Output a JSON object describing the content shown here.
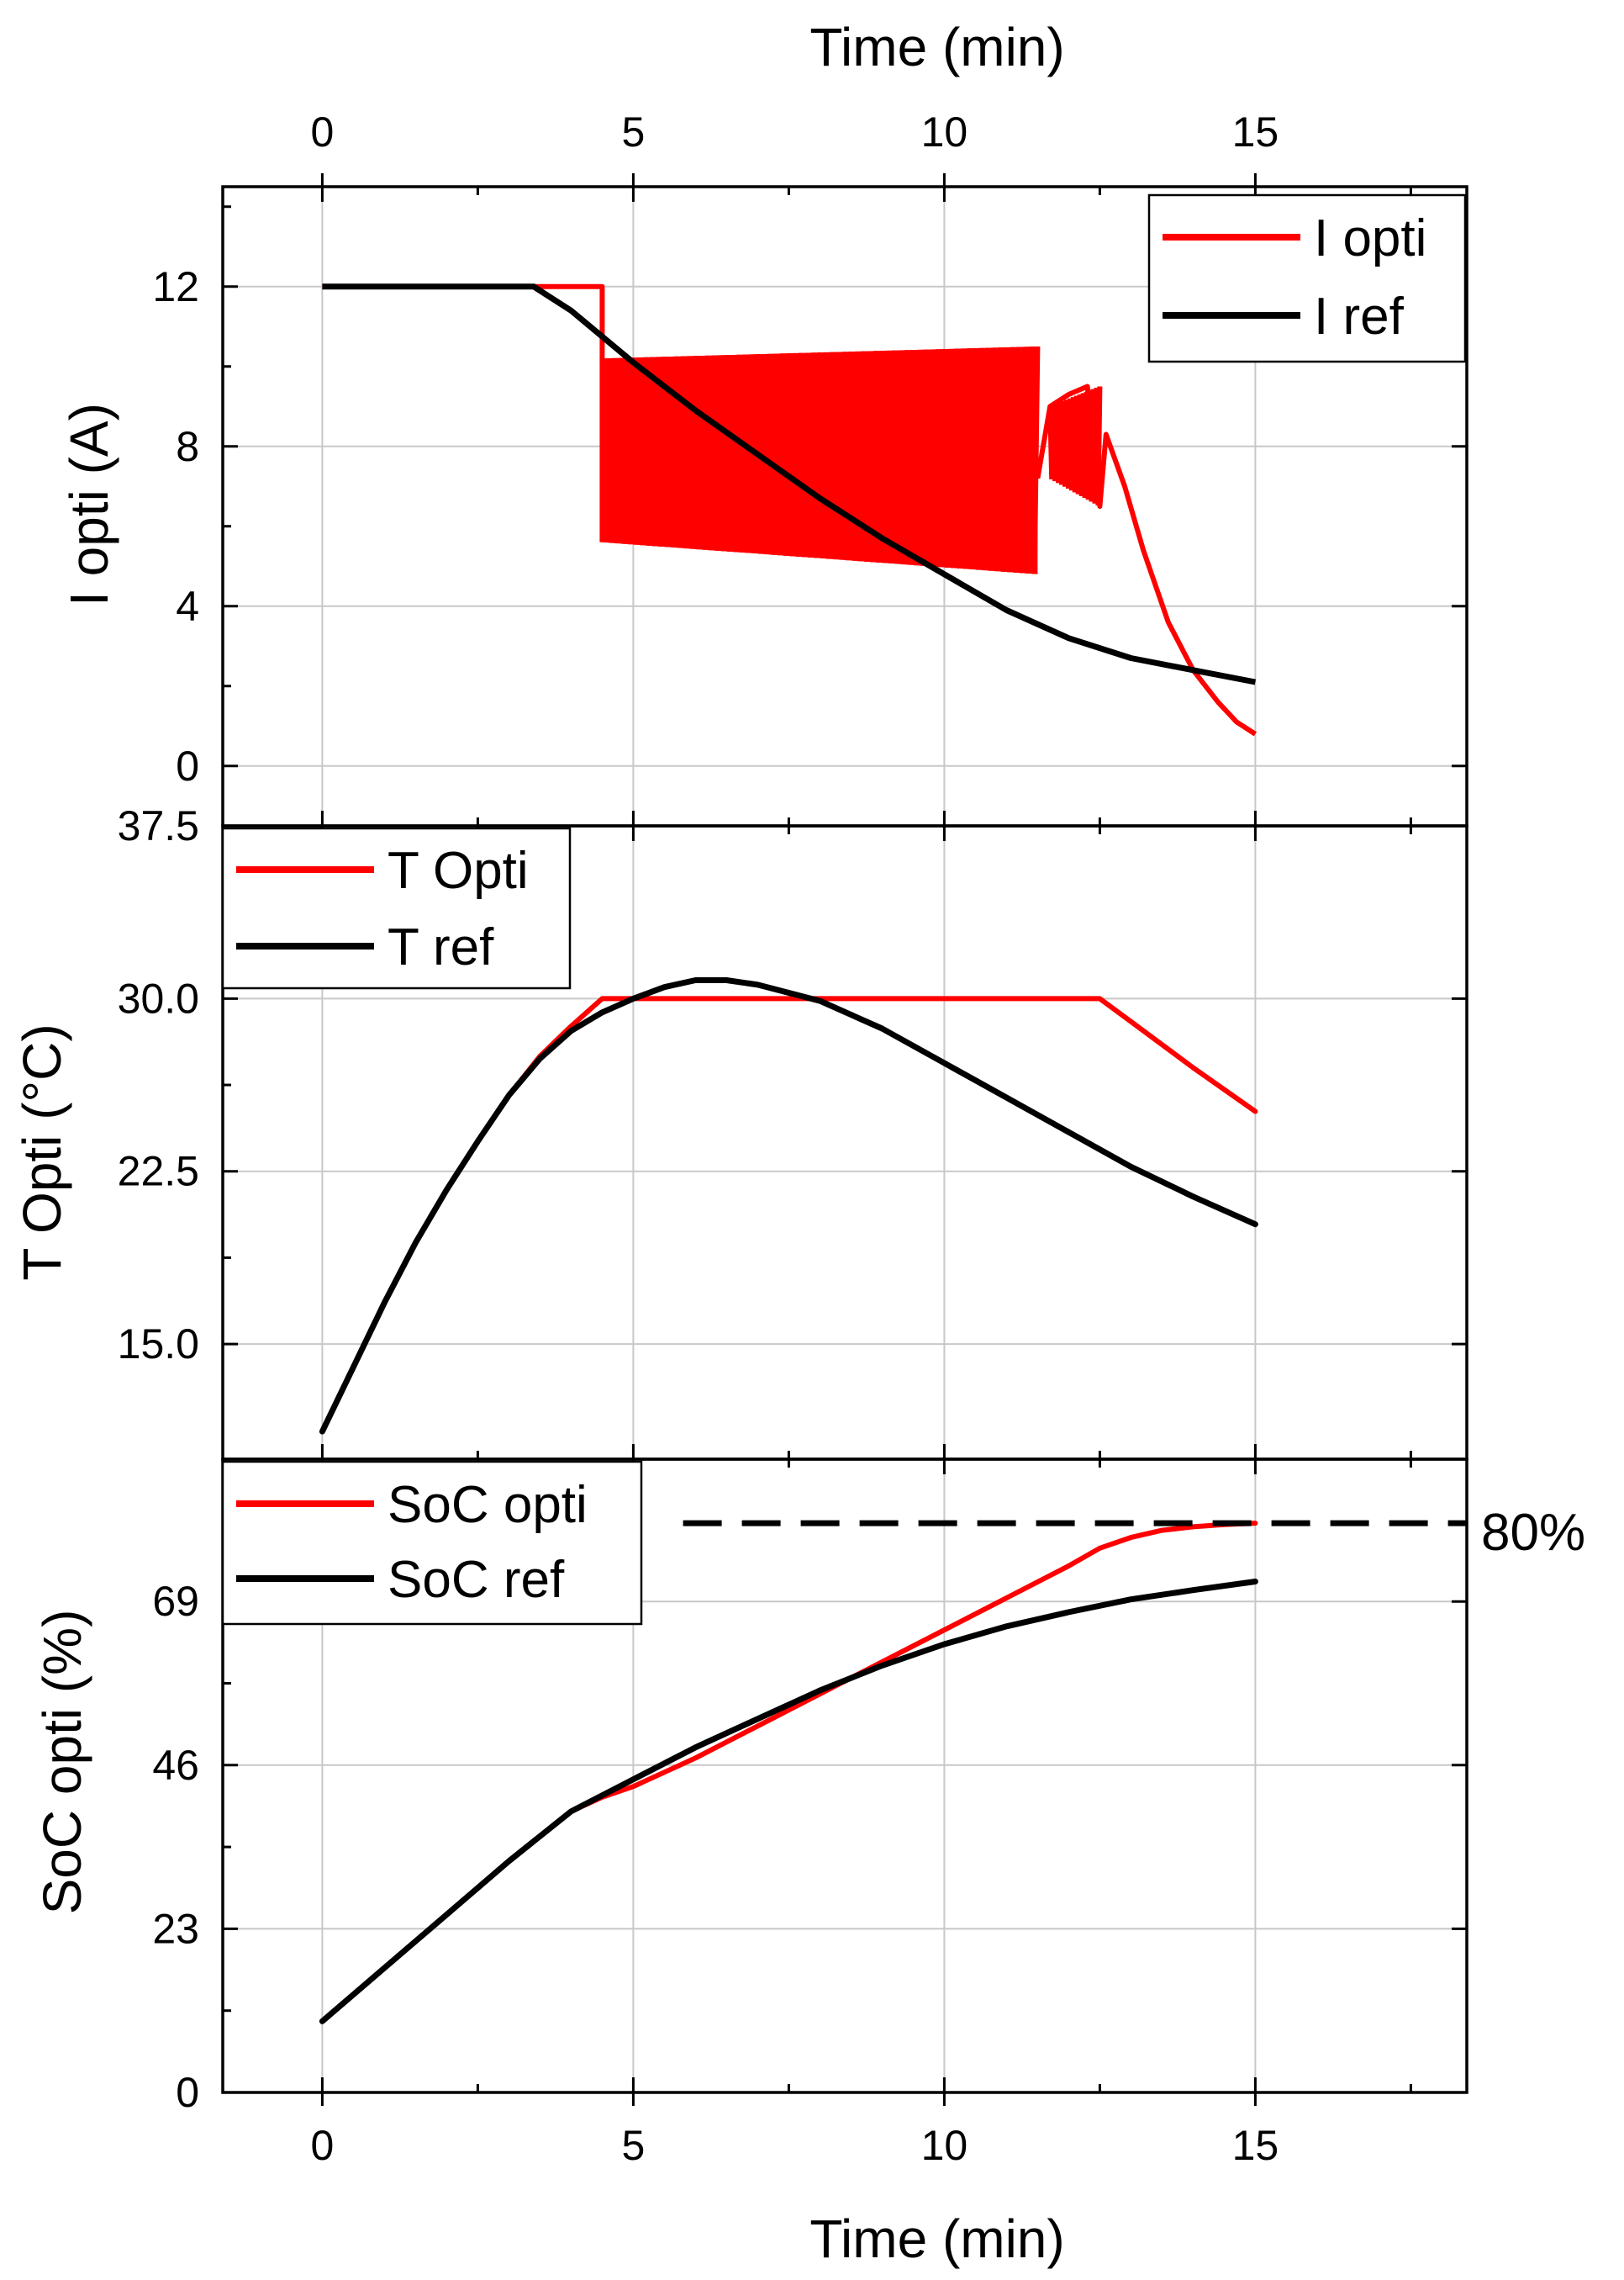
{
  "chart_data": [
    {
      "type": "line",
      "panel": "current",
      "title": "",
      "xlabel_top": "Time (min)",
      "ylabel": "I opti (A)",
      "xlim": [
        -1.6,
        18.4
      ],
      "ylim": [
        -1.5,
        14.5
      ],
      "xticks": [
        0,
        5,
        10,
        15
      ],
      "xtick_labels": [
        "0",
        "5",
        "10",
        "15"
      ],
      "yticks": [
        0,
        4,
        8,
        12
      ],
      "ytick_labels": [
        "0",
        "4",
        "8",
        "12"
      ],
      "grid": true,
      "legend_position": "top-right",
      "series": [
        {
          "name": "I opti",
          "color": "#ff0000",
          "x": [
            0,
            4.5,
            4.5
          ],
          "y": [
            12,
            12,
            5.6
          ],
          "oscillation": {
            "x_start": 4.5,
            "x_end": 11.5,
            "upper_start": 10.2,
            "upper_end": 10.5,
            "lower_start": 5.6,
            "lower_end": 4.8
          },
          "tail_x": [
            11.5,
            11.7,
            12.0,
            12.3,
            12.5,
            12.6,
            12.9,
            13.2,
            13.6,
            14.0,
            14.4,
            14.7,
            15.0
          ],
          "tail_y": [
            7.2,
            9.0,
            9.3,
            9.5,
            6.5,
            8.3,
            7.0,
            5.4,
            3.6,
            2.4,
            1.6,
            1.1,
            0.8
          ]
        },
        {
          "name": "I ref",
          "color": "#000000",
          "x": [
            0,
            3.4,
            4.0,
            5.0,
            6.0,
            7.0,
            8.0,
            9.0,
            10.0,
            11.0,
            12.0,
            13.0,
            14.0,
            15.0
          ],
          "y": [
            12,
            12,
            11.4,
            10.1,
            8.9,
            7.8,
            6.7,
            5.7,
            4.8,
            3.9,
            3.2,
            2.7,
            2.4,
            2.1
          ]
        }
      ]
    },
    {
      "type": "line",
      "panel": "temperature",
      "ylabel": "T Opti (°C)",
      "xlim": [
        -1.6,
        18.4
      ],
      "ylim": [
        10.0,
        37.5
      ],
      "yticks": [
        15.0,
        22.5,
        30.0,
        37.5
      ],
      "ytick_labels": [
        "15.0",
        "22.5",
        "30.0",
        "37.5"
      ],
      "grid": true,
      "legend_position": "top-left",
      "series": [
        {
          "name": "T Opti",
          "color": "#ff0000",
          "x": [
            0,
            0.5,
            1.0,
            1.5,
            2.0,
            2.5,
            3.0,
            3.5,
            4.0,
            4.5,
            6.0,
            8.0,
            10.0,
            12.0,
            12.5,
            13.0,
            14.0,
            15.0
          ],
          "y": [
            11.2,
            14.0,
            16.8,
            19.4,
            21.7,
            23.8,
            25.8,
            27.5,
            28.8,
            30.0,
            30.0,
            30.0,
            30.0,
            30.0,
            30.0,
            29.0,
            27.0,
            25.1
          ]
        },
        {
          "name": "T ref",
          "color": "#000000",
          "x": [
            0,
            0.5,
            1.0,
            1.5,
            2.0,
            2.5,
            3.0,
            3.5,
            4.0,
            4.5,
            5.0,
            5.5,
            6.0,
            6.5,
            7.0,
            8.0,
            9.0,
            10.0,
            11.0,
            12.0,
            13.0,
            14.0,
            15.0
          ],
          "y": [
            11.2,
            14.0,
            16.8,
            19.4,
            21.7,
            23.8,
            25.8,
            27.4,
            28.6,
            29.4,
            30.0,
            30.5,
            30.8,
            30.8,
            30.6,
            29.9,
            28.7,
            27.2,
            25.7,
            24.2,
            22.7,
            21.4,
            20.2
          ]
        }
      ]
    },
    {
      "type": "line",
      "panel": "soc",
      "xlabel": "Time (min)",
      "ylabel": "SoC opti (%)",
      "xlim": [
        -1.6,
        18.4
      ],
      "ylim": [
        0,
        89
      ],
      "xticks": [
        0,
        5,
        10,
        15
      ],
      "xtick_labels": [
        "0",
        "5",
        "10",
        "15"
      ],
      "yticks": [
        0,
        23,
        46,
        69
      ],
      "ytick_labels": [
        "0",
        "23",
        "46",
        "69"
      ],
      "grid": true,
      "legend_position": "top-left",
      "reference_line": {
        "y": 80,
        "label": "80%",
        "style": "dashed",
        "x_start": 5.8
      },
      "series": [
        {
          "name": "SoC opti",
          "color": "#ff0000",
          "x": [
            0,
            1,
            2,
            3,
            4,
            4.5,
            5,
            6,
            7,
            8,
            9,
            10,
            11,
            12,
            12.5,
            13,
            13.5,
            14,
            14.5,
            15
          ],
          "y": [
            10,
            17.5,
            25,
            32.5,
            39.5,
            41.5,
            43,
            47,
            51.5,
            56,
            60.5,
            65,
            69.5,
            74,
            76.5,
            78,
            79,
            79.5,
            79.8,
            80
          ]
        },
        {
          "name": "SoC ref",
          "color": "#000000",
          "x": [
            0,
            1,
            2,
            3,
            4,
            5,
            6,
            7,
            8,
            9,
            10,
            11,
            12,
            13,
            14,
            15
          ],
          "y": [
            10,
            17.5,
            25,
            32.5,
            39.5,
            44,
            48.5,
            52.5,
            56.5,
            60,
            63,
            65.5,
            67.5,
            69.3,
            70.6,
            71.8
          ]
        }
      ]
    }
  ]
}
